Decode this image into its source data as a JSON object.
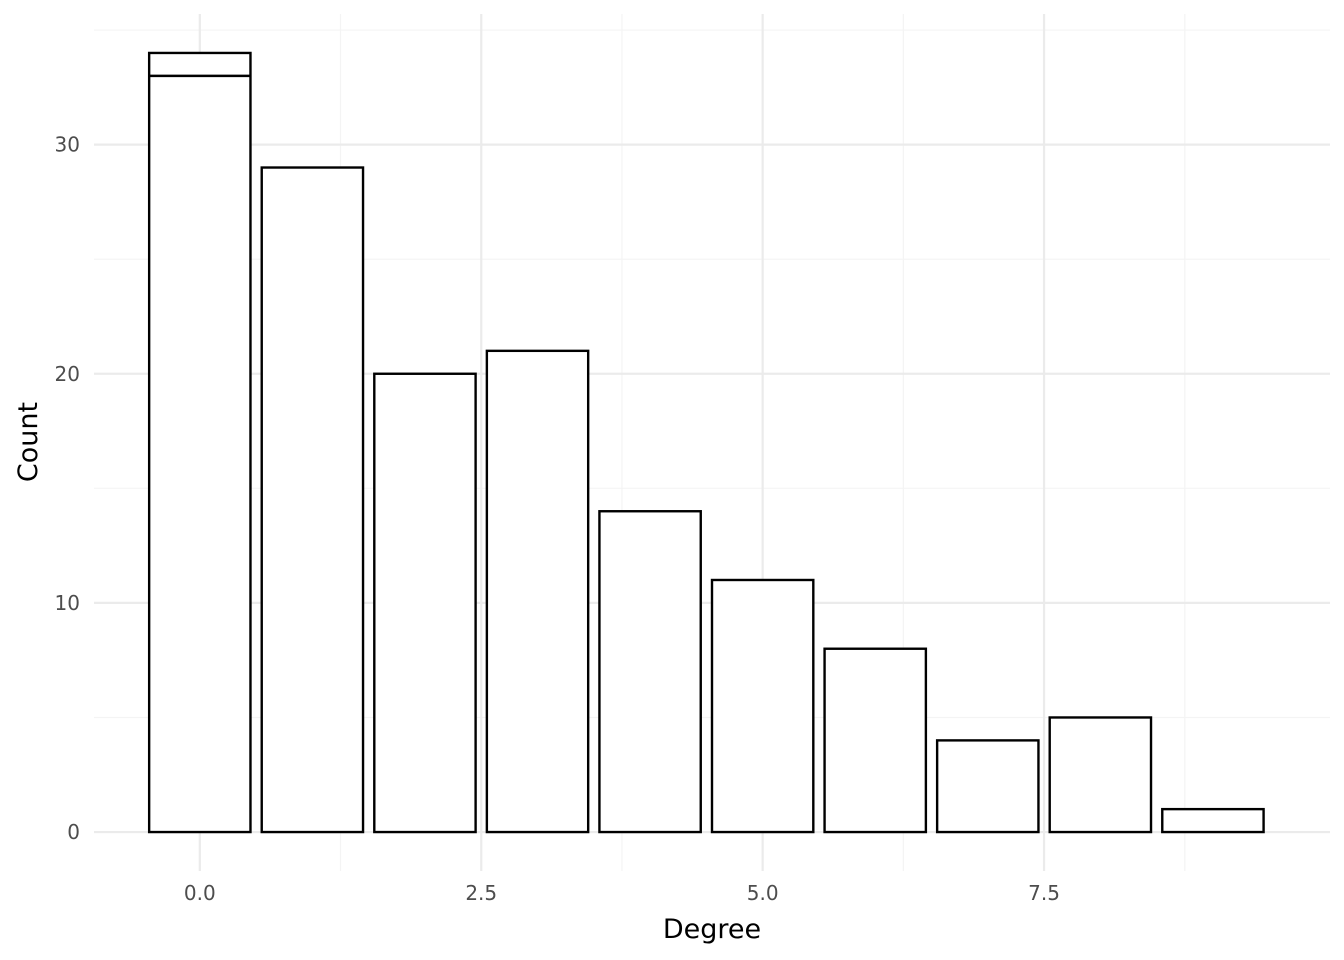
{
  "chart_data": {
    "type": "bar",
    "title": "",
    "xlabel": "Degree",
    "ylabel": "Count",
    "x": [
      0,
      1,
      2,
      3,
      4,
      5,
      6,
      7,
      8,
      9
    ],
    "values": [
      34,
      29,
      20,
      21,
      14,
      11,
      8,
      4,
      5,
      1
    ],
    "inner_line_at_x0": 33,
    "xlim": [
      -0.94,
      10.04
    ],
    "ylim": [
      -1.7,
      35.7
    ],
    "x_ticks": [
      0,
      2.5,
      5,
      7.5
    ],
    "x_tick_labels": [
      "0.0",
      "2.5",
      "5.0",
      "7.5"
    ],
    "y_ticks": [
      0,
      10,
      20,
      30
    ],
    "y_tick_labels": [
      "0",
      "10",
      "20",
      "30"
    ],
    "grid": true,
    "legend": "none",
    "colors": {
      "bar_fill": "#ffffff",
      "bar_stroke": "#000000",
      "grid": "#ebebeb"
    }
  }
}
